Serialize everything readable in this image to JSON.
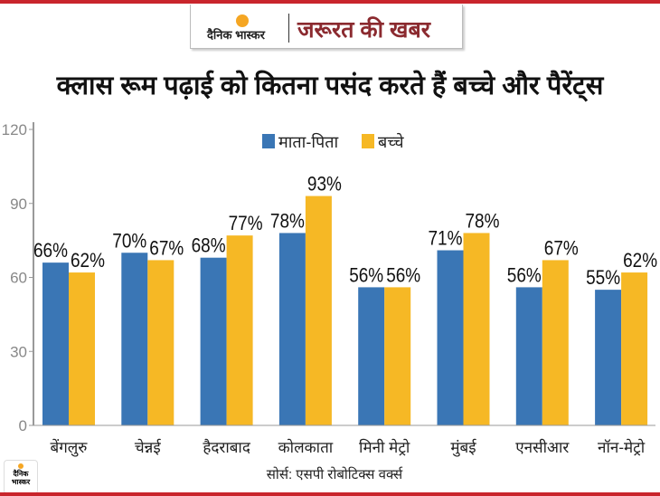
{
  "header": {
    "brand": "दैनिक भास्कर",
    "tag": "जरूरत की खबर"
  },
  "footer": {
    "source": "सोर्स: एसपी रोबोटिक्स वर्क्स",
    "corner_logo": "दैनिक भास्कर"
  },
  "colors": {
    "parents": "#3a76b5",
    "children": "#f6b825",
    "accent": "#c9252c"
  },
  "chart_data": {
    "type": "bar",
    "title": "क्लास रूम पढ़ाई को कितना पसंद करते हैं बच्चे और पैरेंट्स",
    "categories": [
      "बेंगलुरु",
      "चेन्नई",
      "हैदराबाद",
      "कोलकाता",
      "मिनी मेट्रो",
      "मुंबई",
      "एनसीआर",
      "नॉन-मेट्रो"
    ],
    "series": [
      {
        "name": "माता-पिता",
        "values": [
          66,
          70,
          68,
          78,
          56,
          71,
          56,
          55
        ]
      },
      {
        "name": "बच्चे",
        "values": [
          62,
          67,
          77,
          93,
          56,
          78,
          67,
          62
        ]
      }
    ],
    "data_labels": [
      [
        "66%",
        "70%",
        "68%",
        "78%",
        "56%",
        "71%",
        "56%",
        "55%"
      ],
      [
        "62%",
        "67%",
        "77%",
        "93%",
        "56%",
        "78%",
        "67%",
        "62%"
      ]
    ],
    "yticks": [
      "0",
      "30",
      "60",
      "90",
      "120"
    ],
    "ylim": [
      0,
      120
    ],
    "legend": "top-center",
    "grid": false
  }
}
